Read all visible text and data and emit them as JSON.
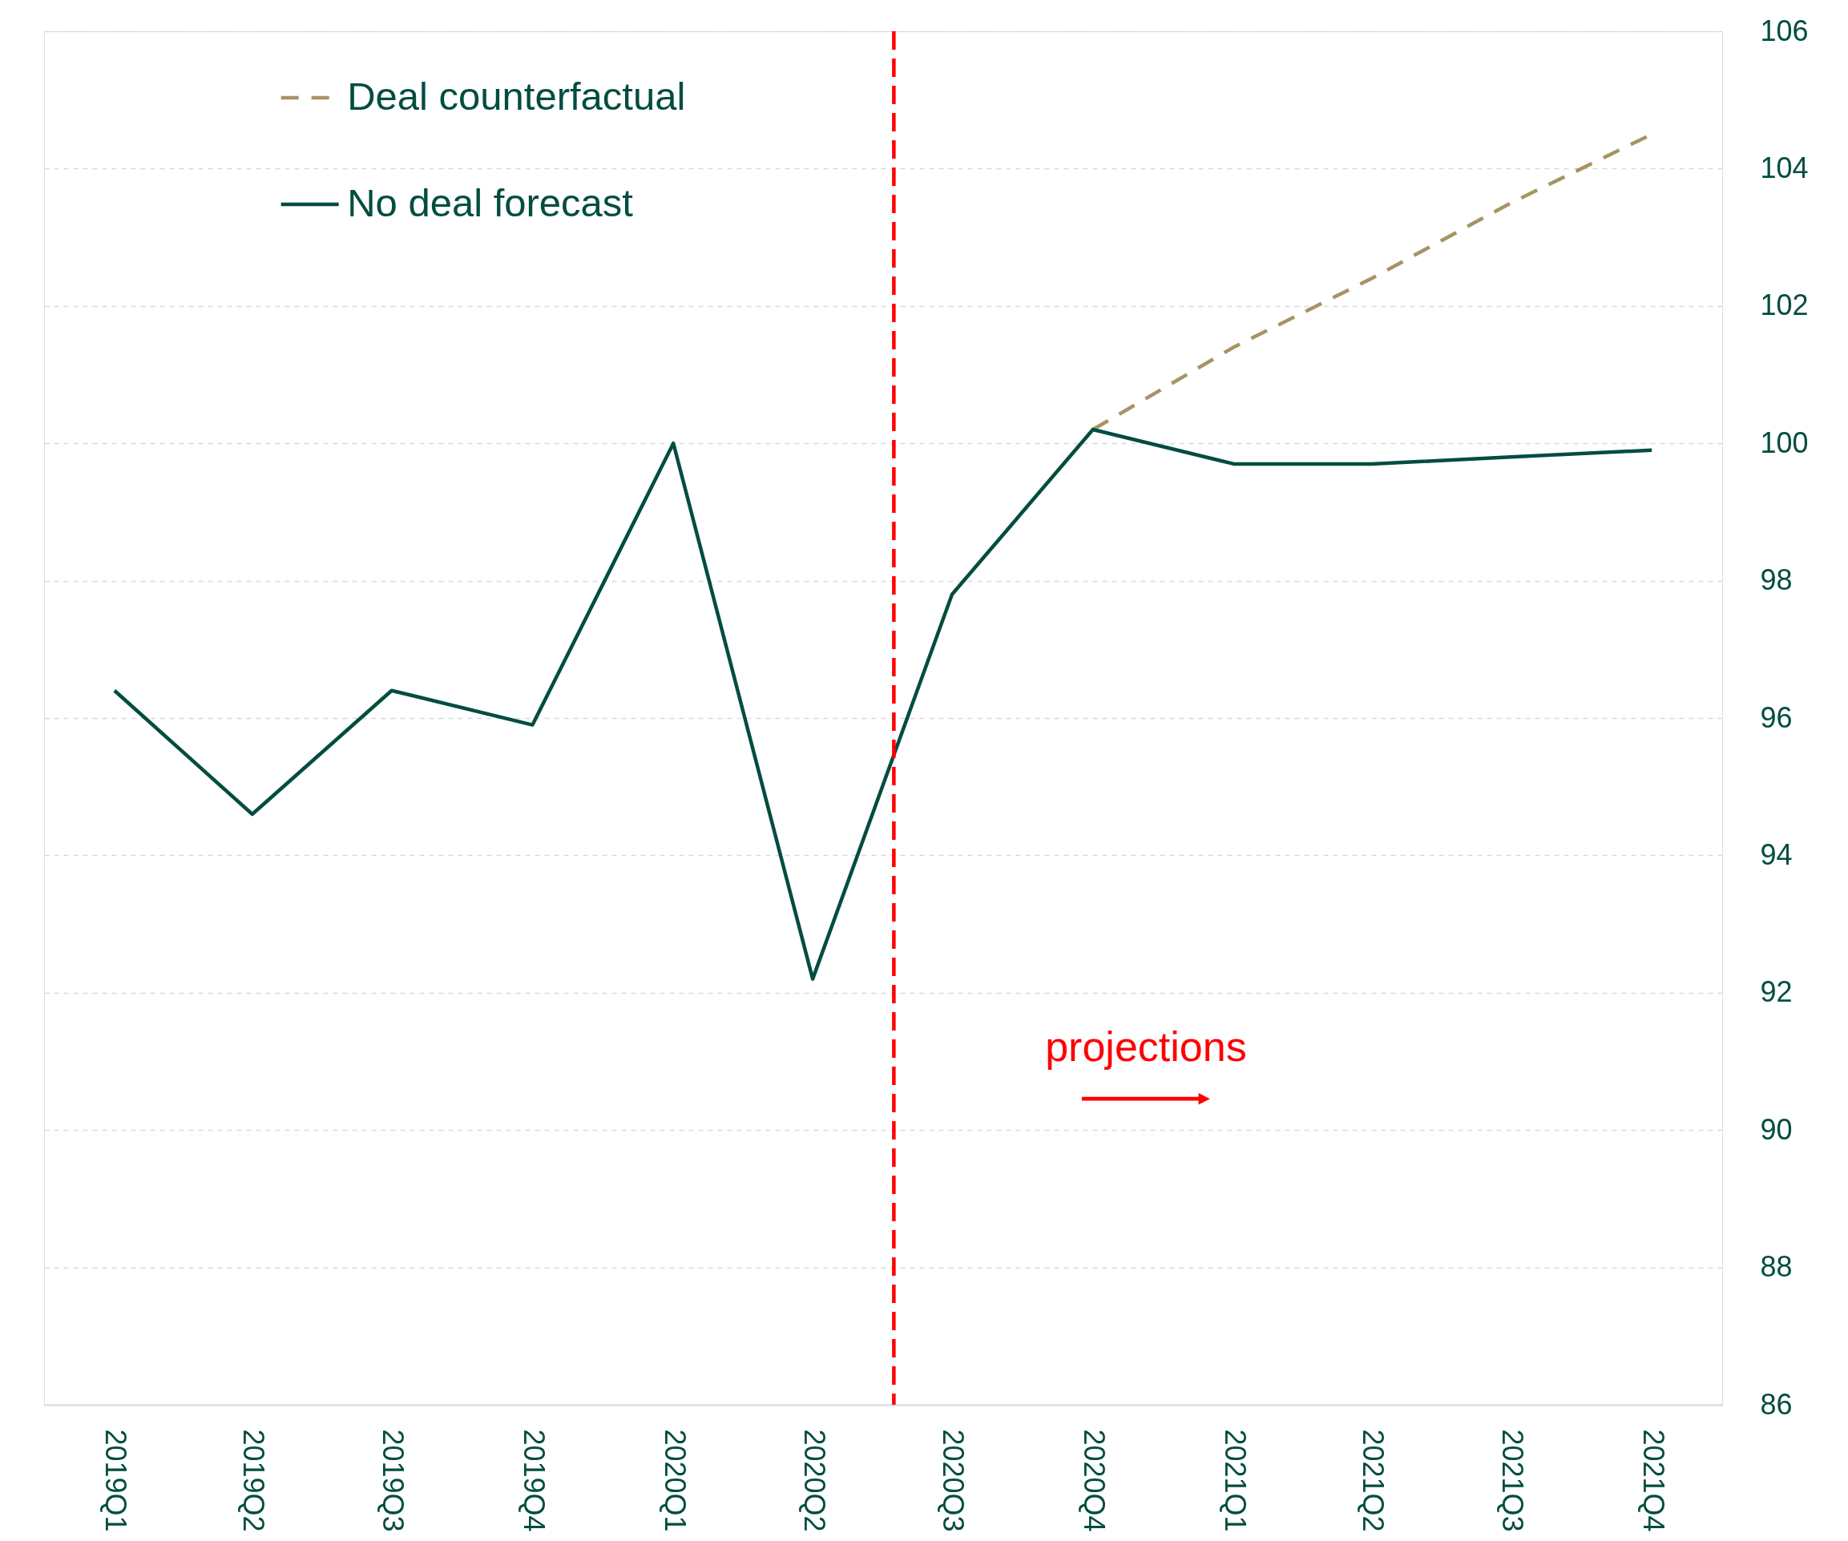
{
  "chart_data": {
    "type": "line",
    "x": [
      "2019-01",
      "2019-04",
      "2019-07",
      "2019-10",
      "2020-01",
      "2020-04",
      "2020-07",
      "2020-10",
      "2021-01",
      "2021-04",
      "2021-07",
      "2021-10"
    ],
    "xlim": [
      "2018-11-16",
      "2021-11-16"
    ],
    "xticks": [
      {
        "value": "2019-01",
        "label": "2019Q1"
      },
      {
        "value": "2019-04",
        "label": "2019Q2"
      },
      {
        "value": "2019-07",
        "label": "2019Q3"
      },
      {
        "value": "2019-10",
        "label": "2019Q4"
      },
      {
        "value": "2020-01",
        "label": "2020Q1"
      },
      {
        "value": "2020-04",
        "label": "2020Q2"
      },
      {
        "value": "2020-07",
        "label": "2020Q3"
      },
      {
        "value": "2020-10",
        "label": "2020Q4"
      },
      {
        "value": "2021-01",
        "label": "2021Q1"
      },
      {
        "value": "2021-04",
        "label": "2021Q2"
      },
      {
        "value": "2021-07",
        "label": "2021Q3"
      },
      {
        "value": "2021-10",
        "label": "2021Q4"
      }
    ],
    "series": [
      {
        "name": "Deal counterfactual",
        "color": "#a69463",
        "line_style": "dashed",
        "values": [
          null,
          null,
          null,
          null,
          null,
          null,
          null,
          100.2,
          101.4,
          102.4,
          103.5,
          104.5
        ]
      },
      {
        "name": "No deal forecast",
        "color": "#024d40",
        "line_style": "solid",
        "values": [
          96.4,
          94.6,
          96.4,
          95.9,
          100,
          92.2,
          97.8,
          100.2,
          99.7,
          99.7,
          99.8,
          99.9
        ]
      }
    ],
    "ylim": [
      86,
      106
    ],
    "yticks": [
      86,
      88,
      90,
      92,
      94,
      96,
      98,
      100,
      102,
      104,
      106
    ],
    "grid": "y",
    "legend": "top left",
    "ref_lines": [
      {
        "axis": "x",
        "value": "2020-05-24",
        "color": "#ff0000",
        "line_style": "dashed"
      }
    ],
    "annotations": [
      "projections"
    ]
  }
}
